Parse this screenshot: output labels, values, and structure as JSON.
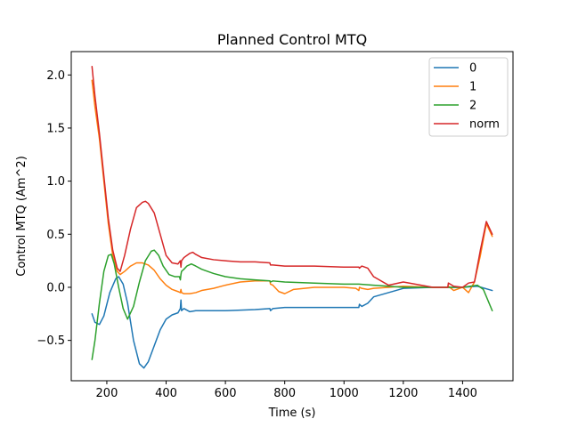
{
  "chart_data": {
    "type": "line",
    "title": "Planned Control MTQ",
    "xlabel": "Time (s)",
    "ylabel": "Control MTQ (Am^2)",
    "xlim": [
      80,
      1570
    ],
    "ylim": [
      -0.88,
      2.22
    ],
    "xticks": [
      200,
      400,
      600,
      800,
      1000,
      1200,
      1400
    ],
    "yticks": [
      -0.5,
      0.0,
      0.5,
      1.0,
      1.5,
      2.0
    ],
    "xtick_labels": [
      "200",
      "400",
      "600",
      "800",
      "1000",
      "1200",
      "1400"
    ],
    "ytick_labels": [
      "−0.5",
      "0.0",
      "0.5",
      "1.0",
      "1.5",
      "2.0"
    ],
    "grid": false,
    "legend_position": "top-right",
    "series": [
      {
        "name": "0",
        "color": "#1f77b4",
        "x": [
          150,
          160,
          175,
          190,
          210,
          230,
          240,
          255,
          270,
          290,
          310,
          325,
          340,
          360,
          380,
          400,
          420,
          440,
          448,
          450,
          452,
          460,
          480,
          500,
          520,
          600,
          700,
          750,
          752,
          760,
          800,
          900,
          1000,
          1050,
          1052,
          1060,
          1080,
          1100,
          1150,
          1200,
          1300,
          1350,
          1400,
          1450,
          1500
        ],
        "y": [
          -0.25,
          -0.33,
          -0.35,
          -0.27,
          -0.05,
          0.08,
          0.1,
          0.03,
          -0.15,
          -0.5,
          -0.72,
          -0.76,
          -0.7,
          -0.55,
          -0.4,
          -0.3,
          -0.26,
          -0.24,
          -0.2,
          -0.12,
          -0.22,
          -0.2,
          -0.23,
          -0.22,
          -0.22,
          -0.22,
          -0.21,
          -0.2,
          -0.22,
          -0.2,
          -0.19,
          -0.19,
          -0.19,
          -0.19,
          -0.16,
          -0.18,
          -0.15,
          -0.09,
          -0.05,
          -0.01,
          0.0,
          0.0,
          0.0,
          0.01,
          -0.03
        ]
      },
      {
        "name": "1",
        "color": "#ff7f0e",
        "x": [
          150,
          160,
          175,
          190,
          205,
          220,
          235,
          245,
          260,
          280,
          300,
          320,
          340,
          360,
          380,
          400,
          420,
          440,
          448,
          450,
          452,
          460,
          480,
          500,
          520,
          560,
          600,
          650,
          700,
          750,
          752,
          760,
          780,
          800,
          830,
          900,
          1000,
          1040,
          1050,
          1052,
          1060,
          1080,
          1100,
          1150,
          1200,
          1300,
          1350,
          1352,
          1370,
          1400,
          1420,
          1440,
          1460,
          1480,
          1500
        ],
        "y": [
          1.95,
          1.7,
          1.4,
          1.0,
          0.6,
          0.3,
          0.15,
          0.12,
          0.15,
          0.2,
          0.23,
          0.23,
          0.21,
          0.16,
          0.08,
          0.02,
          -0.02,
          -0.04,
          -0.05,
          -0.02,
          -0.05,
          -0.06,
          -0.06,
          -0.05,
          -0.03,
          -0.01,
          0.02,
          0.05,
          0.06,
          0.06,
          0.03,
          0.02,
          -0.04,
          -0.06,
          -0.02,
          0.0,
          0.0,
          -0.01,
          -0.03,
          0.0,
          -0.01,
          -0.02,
          -0.01,
          0.0,
          0.01,
          0.0,
          0.0,
          0.01,
          -0.03,
          0.0,
          -0.05,
          0.05,
          0.3,
          0.6,
          0.48
        ]
      },
      {
        "name": "2",
        "color": "#2ca02c",
        "x": [
          150,
          160,
          175,
          190,
          205,
          215,
          225,
          240,
          255,
          270,
          290,
          310,
          330,
          350,
          360,
          375,
          390,
          410,
          430,
          445,
          448,
          450,
          452,
          460,
          470,
          485,
          500,
          520,
          560,
          600,
          650,
          700,
          750,
          752,
          760,
          800,
          900,
          1000,
          1050,
          1100,
          1150,
          1200,
          1300,
          1400,
          1450,
          1470,
          1500
        ],
        "y": [
          -0.68,
          -0.5,
          -0.15,
          0.15,
          0.3,
          0.31,
          0.22,
          0.0,
          -0.2,
          -0.3,
          -0.18,
          0.05,
          0.25,
          0.34,
          0.35,
          0.3,
          0.2,
          0.12,
          0.1,
          0.1,
          0.07,
          0.12,
          0.15,
          0.17,
          0.2,
          0.22,
          0.2,
          0.17,
          0.13,
          0.1,
          0.08,
          0.07,
          0.06,
          0.05,
          0.06,
          0.05,
          0.04,
          0.03,
          0.03,
          0.02,
          0.01,
          0.0,
          0.0,
          0.0,
          0.02,
          -0.02,
          -0.22
        ]
      },
      {
        "name": "norm",
        "color": "#d62728",
        "x": [
          150,
          160,
          175,
          190,
          205,
          220,
          235,
          245,
          260,
          280,
          300,
          320,
          330,
          340,
          360,
          380,
          400,
          420,
          440,
          448,
          450,
          452,
          460,
          480,
          490,
          500,
          520,
          560,
          600,
          650,
          700,
          750,
          752,
          760,
          800,
          900,
          1000,
          1050,
          1052,
          1060,
          1080,
          1100,
          1150,
          1200,
          1300,
          1350,
          1352,
          1370,
          1400,
          1420,
          1440,
          1460,
          1480,
          1500
        ],
        "y": [
          2.08,
          1.8,
          1.45,
          1.05,
          0.65,
          0.35,
          0.18,
          0.15,
          0.3,
          0.55,
          0.75,
          0.8,
          0.81,
          0.79,
          0.7,
          0.5,
          0.3,
          0.23,
          0.22,
          0.25,
          0.19,
          0.25,
          0.28,
          0.32,
          0.33,
          0.31,
          0.28,
          0.26,
          0.25,
          0.24,
          0.24,
          0.23,
          0.21,
          0.21,
          0.2,
          0.2,
          0.19,
          0.19,
          0.18,
          0.2,
          0.18,
          0.1,
          0.02,
          0.05,
          0.0,
          0.0,
          0.04,
          0.01,
          0.0,
          0.04,
          0.05,
          0.35,
          0.62,
          0.5
        ]
      }
    ]
  }
}
